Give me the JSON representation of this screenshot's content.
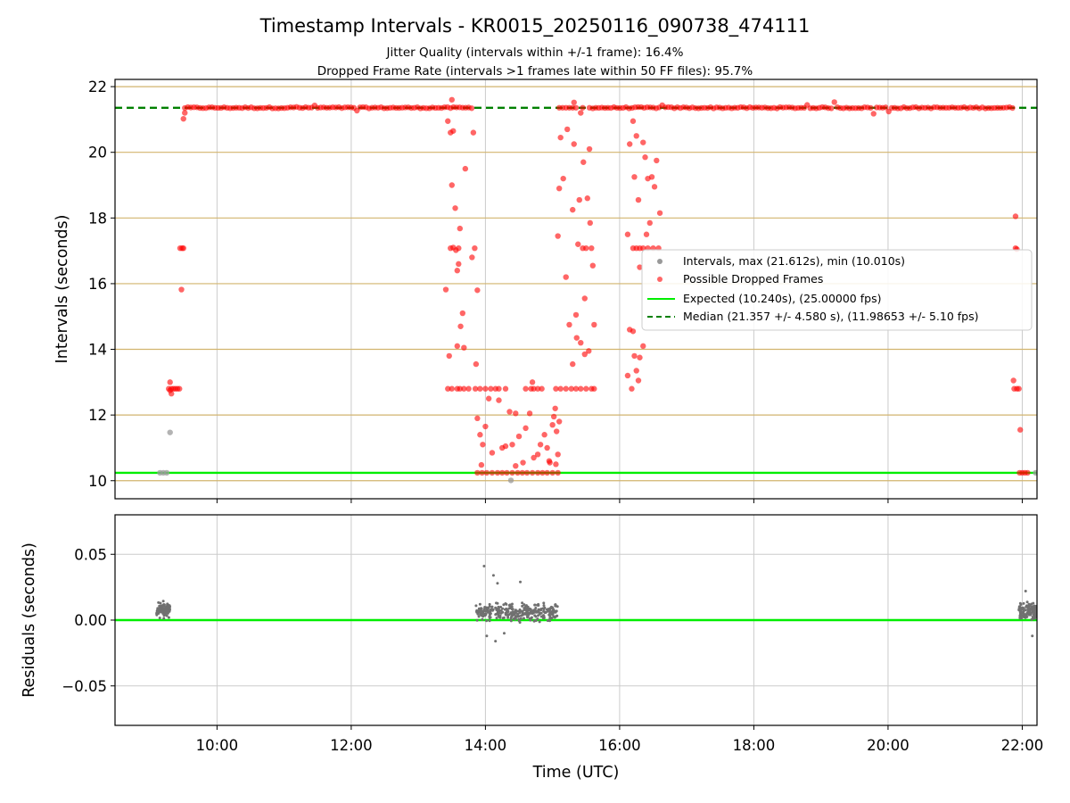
{
  "figure": {
    "title": "Timestamp Intervals - KR0015_20250116_090738_474111",
    "subtitle_1": "Jitter Quality (intervals within +/-1 frame): 16.4%",
    "subtitle_2": "Dropped Frame Rate (intervals >1 frames late within 50 FF files): 95.7%",
    "xlabel": "Time (UTC)"
  },
  "colors": {
    "intervals": "#999999",
    "dropped": "#ff0000",
    "expected": "#00ee00",
    "median": "#008000",
    "hband": "#d2b46e",
    "residuals": "#707070",
    "grid": "#cccccc"
  },
  "chart_data": [
    {
      "type": "scatter",
      "ylabel": "Intervals (seconds)",
      "xlim": [
        8.48,
        22.22
      ],
      "ylim": [
        9.45,
        22.22
      ],
      "x_unit": "hours UTC",
      "xticks": [
        10,
        12,
        14,
        16,
        18,
        20,
        22
      ],
      "yticks": [
        10,
        12,
        14,
        16,
        18,
        20,
        22
      ],
      "ytick_labels": [
        "10",
        "12",
        "14",
        "16",
        "18",
        "20",
        "22"
      ],
      "grid": true,
      "horizontal_bands": [
        10,
        12,
        14,
        16,
        18,
        20,
        22
      ],
      "expected": 10.24,
      "median": 21.357,
      "legend_position": "center-right",
      "legend": [
        {
          "label": "Intervals, max (21.612s), min (10.010s)",
          "marker": "dot",
          "color": "#999999"
        },
        {
          "label": "Possible Dropped Frames",
          "marker": "dot",
          "color": "#ff0000"
        },
        {
          "label": "Expected (10.240s), (25.00000 fps)",
          "marker": "line",
          "color": "#00ee00"
        },
        {
          "label": "Median (21.357 +/- 4.580 s), (11.98653 +/- 5.10 fps)",
          "marker": "dashed",
          "color": "#008000"
        }
      ],
      "series": [
        {
          "role": "intervals",
          "points": [
            [
              9.15,
              10.24
            ],
            [
              9.2,
              10.24
            ],
            [
              9.25,
              10.24
            ],
            [
              9.3,
              11.47
            ],
            [
              14.38,
              10.01
            ],
            [
              22.2,
              10.24
            ]
          ]
        },
        {
          "role": "dropped",
          "points": [
            [
              9.28,
              12.8
            ],
            [
              9.3,
              12.75
            ],
            [
              9.32,
              12.8
            ],
            [
              9.35,
              12.8
            ],
            [
              9.38,
              12.8
            ],
            [
              9.41,
              12.8
            ],
            [
              9.44,
              12.8
            ],
            [
              9.3,
              13.0
            ],
            [
              9.32,
              12.65
            ],
            [
              9.45,
              17.08
            ],
            [
              9.48,
              17.08
            ],
            [
              9.5,
              17.08
            ],
            [
              9.47,
              15.82
            ],
            [
              9.5,
              21.02
            ],
            [
              9.52,
              21.2
            ],
            [
              13.48,
              17.08
            ],
            [
              13.52,
              17.1
            ],
            [
              13.56,
              17.02
            ],
            [
              13.6,
              17.08
            ],
            [
              13.5,
              19.0
            ],
            [
              13.55,
              18.3
            ],
            [
              13.62,
              17.68
            ],
            [
              13.6,
              16.6
            ],
            [
              13.58,
              16.4
            ],
            [
              13.66,
              15.1
            ],
            [
              13.7,
              19.5
            ],
            [
              13.84,
              17.08
            ],
            [
              13.8,
              16.8
            ],
            [
              13.88,
              15.8
            ],
            [
              13.44,
              20.95
            ],
            [
              13.48,
              20.6
            ],
            [
              13.52,
              20.65
            ],
            [
              13.5,
              21.6
            ],
            [
              13.82,
              20.6
            ],
            [
              13.41,
              15.82
            ],
            [
              13.46,
              13.8
            ],
            [
              13.58,
              14.1
            ],
            [
              13.68,
              14.05
            ],
            [
              13.63,
              14.7
            ],
            [
              13.86,
              13.55
            ],
            [
              13.44,
              12.8
            ],
            [
              13.5,
              12.8
            ],
            [
              13.58,
              12.8
            ],
            [
              13.62,
              12.8
            ],
            [
              13.68,
              12.8
            ],
            [
              13.75,
              12.8
            ],
            [
              13.85,
              12.8
            ],
            [
              13.92,
              12.8
            ],
            [
              14.0,
              12.8
            ],
            [
              14.08,
              12.8
            ],
            [
              14.15,
              12.8
            ],
            [
              14.2,
              12.8
            ],
            [
              14.3,
              12.8
            ],
            [
              14.6,
              12.8
            ],
            [
              14.68,
              12.8
            ],
            [
              14.72,
              12.8
            ],
            [
              14.78,
              12.8
            ],
            [
              14.84,
              12.8
            ],
            [
              15.05,
              12.8
            ],
            [
              15.12,
              12.8
            ],
            [
              15.2,
              12.8
            ],
            [
              15.28,
              12.8
            ],
            [
              15.35,
              12.8
            ],
            [
              15.42,
              12.8
            ],
            [
              15.5,
              12.8
            ],
            [
              15.58,
              12.8
            ],
            [
              15.62,
              12.8
            ],
            [
              14.7,
              13.0
            ],
            [
              13.88,
              11.9
            ],
            [
              13.92,
              11.4
            ],
            [
              13.96,
              11.1
            ],
            [
              14.0,
              11.65
            ],
            [
              14.05,
              12.5
            ],
            [
              14.1,
              10.85
            ],
            [
              14.2,
              12.45
            ],
            [
              14.25,
              11.0
            ],
            [
              14.3,
              11.05
            ],
            [
              14.36,
              12.1
            ],
            [
              14.4,
              11.1
            ],
            [
              14.45,
              12.05
            ],
            [
              14.5,
              11.35
            ],
            [
              14.56,
              10.55
            ],
            [
              14.6,
              11.6
            ],
            [
              14.66,
              12.05
            ],
            [
              14.72,
              10.7
            ],
            [
              14.78,
              10.8
            ],
            [
              14.82,
              11.1
            ],
            [
              14.88,
              11.4
            ],
            [
              14.92,
              11.0
            ],
            [
              14.96,
              10.55
            ],
            [
              15.0,
              11.7
            ],
            [
              15.04,
              12.2
            ],
            [
              15.06,
              11.5
            ],
            [
              15.1,
              11.8
            ],
            [
              15.02,
              11.95
            ],
            [
              15.08,
              10.8
            ],
            [
              13.94,
              10.48
            ],
            [
              14.45,
              10.45
            ],
            [
              14.95,
              10.6
            ],
            [
              15.05,
              10.5
            ],
            [
              13.88,
              10.24
            ],
            [
              13.95,
              10.24
            ],
            [
              14.02,
              10.24
            ],
            [
              14.1,
              10.24
            ],
            [
              14.18,
              10.24
            ],
            [
              14.25,
              10.24
            ],
            [
              14.32,
              10.24
            ],
            [
              14.4,
              10.24
            ],
            [
              14.48,
              10.24
            ],
            [
              14.55,
              10.24
            ],
            [
              14.62,
              10.24
            ],
            [
              14.7,
              10.24
            ],
            [
              14.78,
              10.24
            ],
            [
              14.85,
              10.24
            ],
            [
              14.92,
              10.24
            ],
            [
              15.0,
              10.24
            ],
            [
              15.08,
              10.24
            ],
            [
              15.12,
              20.45
            ],
            [
              15.2,
              16.2
            ],
            [
              15.25,
              14.75
            ],
            [
              15.3,
              18.25
            ],
            [
              15.32,
              20.25
            ],
            [
              15.35,
              15.05
            ],
            [
              15.38,
              17.2
            ],
            [
              15.4,
              18.55
            ],
            [
              15.42,
              14.2
            ],
            [
              15.45,
              17.08
            ],
            [
              15.48,
              15.55
            ],
            [
              15.5,
              17.08
            ],
            [
              15.52,
              18.6
            ],
            [
              15.54,
              13.95
            ],
            [
              15.56,
              17.85
            ],
            [
              15.58,
              17.08
            ],
            [
              15.6,
              16.55
            ],
            [
              15.62,
              14.75
            ],
            [
              15.55,
              20.1
            ],
            [
              15.46,
              19.7
            ],
            [
              15.1,
              18.9
            ],
            [
              15.16,
              19.2
            ],
            [
              15.08,
              17.45
            ],
            [
              15.3,
              13.55
            ],
            [
              15.48,
              13.85
            ],
            [
              15.36,
              14.35
            ],
            [
              15.22,
              20.7
            ],
            [
              15.1,
              21.357
            ],
            [
              15.15,
              21.357
            ],
            [
              15.2,
              21.357
            ],
            [
              15.25,
              21.357
            ],
            [
              15.3,
              21.357
            ],
            [
              15.35,
              21.357
            ],
            [
              15.45,
              21.357
            ],
            [
              15.55,
              21.357
            ],
            [
              15.32,
              21.52
            ],
            [
              15.42,
              21.2
            ],
            [
              16.12,
              17.5
            ],
            [
              16.2,
              17.08
            ],
            [
              16.25,
              17.08
            ],
            [
              16.3,
              17.08
            ],
            [
              16.35,
              17.08
            ],
            [
              16.42,
              17.08
            ],
            [
              16.5,
              17.08
            ],
            [
              16.58,
              17.08
            ],
            [
              16.22,
              19.25
            ],
            [
              16.28,
              18.55
            ],
            [
              16.35,
              20.3
            ],
            [
              16.38,
              19.85
            ],
            [
              16.42,
              19.2
            ],
            [
              16.48,
              19.25
            ],
            [
              16.52,
              18.95
            ],
            [
              16.55,
              19.75
            ],
            [
              16.6,
              18.15
            ],
            [
              16.45,
              17.85
            ],
            [
              16.15,
              20.25
            ],
            [
              16.2,
              20.95
            ],
            [
              16.25,
              20.5
            ],
            [
              16.4,
              17.5
            ],
            [
              16.3,
              16.5
            ],
            [
              16.15,
              14.6
            ],
            [
              16.2,
              14.55
            ],
            [
              16.22,
              13.8
            ],
            [
              16.18,
              12.8
            ],
            [
              16.25,
              13.35
            ],
            [
              16.28,
              13.05
            ],
            [
              16.12,
              13.2
            ],
            [
              16.3,
              13.75
            ],
            [
              16.35,
              14.1
            ],
            [
              21.9,
              18.05
            ],
            [
              21.9,
              17.08
            ],
            [
              21.92,
              17.05
            ],
            [
              21.87,
              13.05
            ],
            [
              21.88,
              12.8
            ],
            [
              21.92,
              12.8
            ],
            [
              21.95,
              12.8
            ],
            [
              21.97,
              11.55
            ],
            [
              21.96,
              10.24
            ],
            [
              22.0,
              10.24
            ],
            [
              22.04,
              10.24
            ],
            [
              22.08,
              10.24
            ]
          ],
          "runs": [
            {
              "y": 21.357,
              "x_from": 9.52,
              "x_to": 13.8
            },
            {
              "y": 21.357,
              "x_from": 15.6,
              "x_to": 21.86
            }
          ]
        }
      ]
    },
    {
      "type": "scatter",
      "ylabel": "Residuals (seconds)",
      "xlim": [
        8.48,
        22.22
      ],
      "ylim": [
        -0.08,
        0.08
      ],
      "xticks": [
        10,
        12,
        14,
        16,
        18,
        20,
        22
      ],
      "xtick_labels": [
        "10:00",
        "12:00",
        "14:00",
        "16:00",
        "18:00",
        "20:00",
        "22:00"
      ],
      "yticks": [
        0.05,
        0.0,
        -0.05
      ],
      "ytick_labels": [
        "0.05",
        "0.00",
        "−0.05"
      ],
      "grid": true,
      "baseline": 0.0,
      "clusters": [
        {
          "x_from": 9.1,
          "x_to": 9.3,
          "y_mean": 0.008,
          "y_spread": 0.008,
          "count": 90
        },
        {
          "x_from": 13.85,
          "x_to": 15.08,
          "y_mean": 0.006,
          "y_spread": 0.009,
          "count": 320
        },
        {
          "x_from": 21.95,
          "x_to": 22.22,
          "y_mean": 0.006,
          "y_spread": 0.009,
          "count": 120
        }
      ],
      "outliers": [
        [
          13.98,
          0.041
        ],
        [
          14.12,
          0.034
        ],
        [
          14.18,
          0.028
        ],
        [
          14.15,
          -0.016
        ],
        [
          14.28,
          -0.01
        ],
        [
          14.02,
          -0.012
        ],
        [
          14.52,
          0.029
        ],
        [
          13.92,
          0.012
        ],
        [
          22.05,
          0.022
        ],
        [
          22.15,
          -0.012
        ]
      ]
    }
  ]
}
